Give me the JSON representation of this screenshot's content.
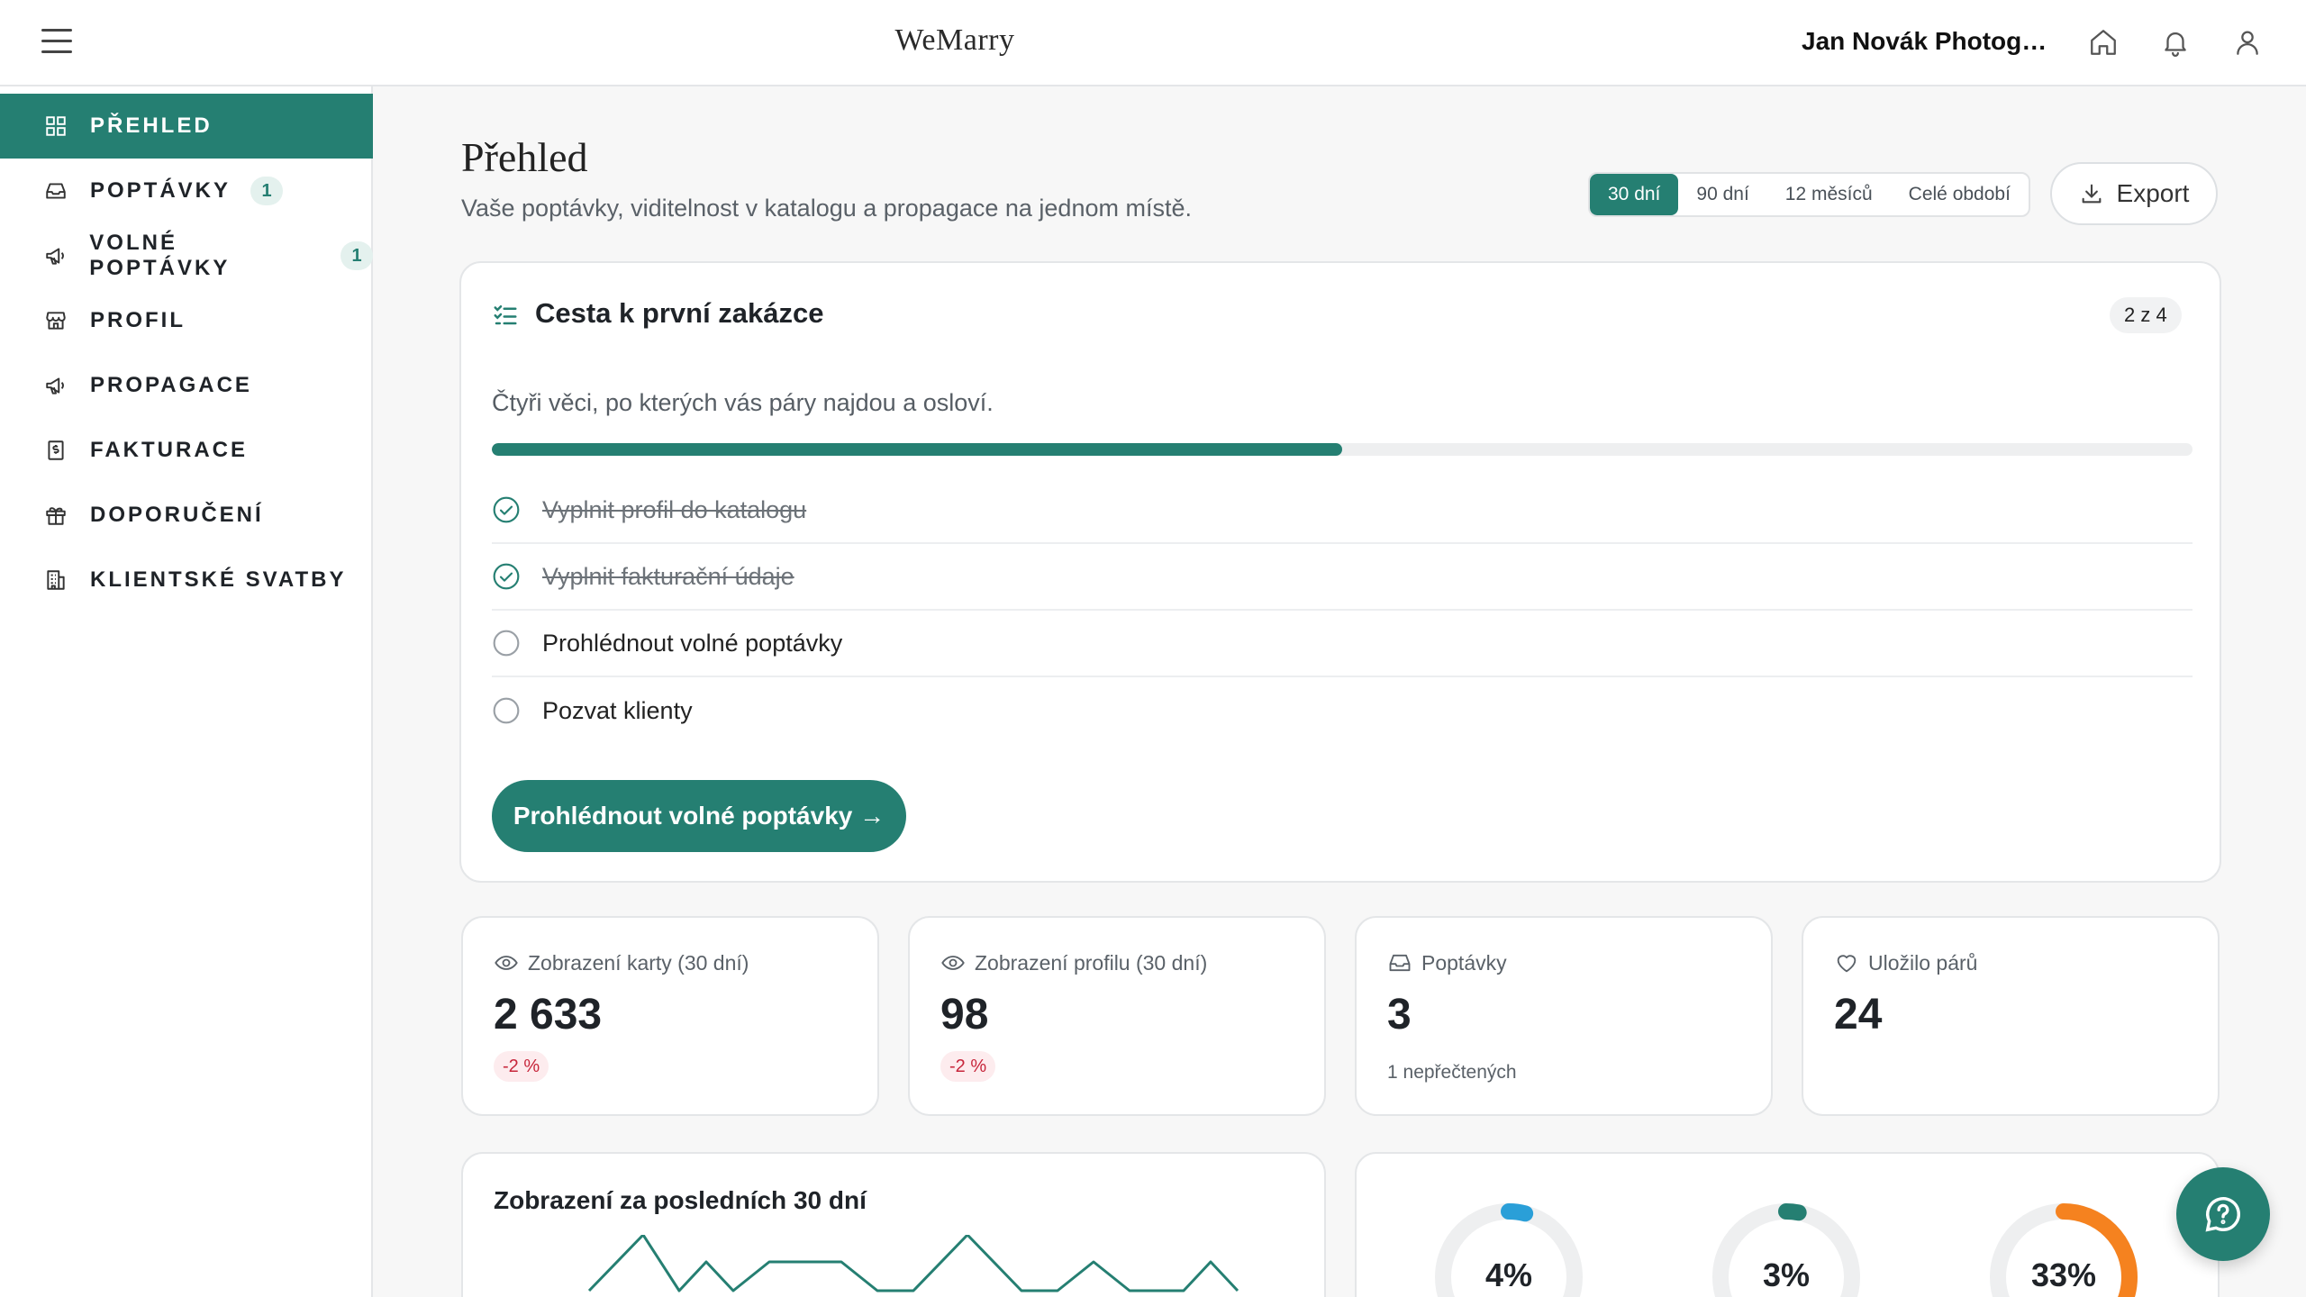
{
  "header": {
    "brand": "WeMarry",
    "account_name": "Jan Novák Photogra..."
  },
  "sidebar": {
    "items": [
      {
        "label": "PŘEHLED",
        "icon": "grid-icon",
        "active": true
      },
      {
        "label": "POPTÁVKY",
        "icon": "inbox-icon",
        "badge": "1"
      },
      {
        "label": "VOLNÉ POPTÁVKY",
        "icon": "megaphone-icon",
        "badge": "1"
      },
      {
        "label": "PROFIL",
        "icon": "store-icon"
      },
      {
        "label": "PROPAGACE",
        "icon": "megaphone-icon"
      },
      {
        "label": "FAKTURACE",
        "icon": "receipt-icon"
      },
      {
        "label": "DOPORUČENÍ",
        "icon": "gift-icon"
      },
      {
        "label": "KLIENTSKÉ SVATBY",
        "icon": "building-icon"
      }
    ]
  },
  "page": {
    "title": "Přehled",
    "subtitle": "Vaše poptávky, viditelnost v katalogu a propagace na jednom místě.",
    "periods": [
      "30 dní",
      "90 dní",
      "12 měsíců",
      "Celé období"
    ],
    "selected_period": "30 dní",
    "export_label": "Export"
  },
  "onboarding": {
    "title": "Cesta k první zakázce",
    "badge": "2 z 4",
    "description": "Čtyři věci, po kterých vás páry najdou a osloví.",
    "progress": 0.5,
    "tasks": [
      {
        "label": "Vyplnit profil do katalogu",
        "done": true
      },
      {
        "label": "Vyplnit fakturační údaje",
        "done": true
      },
      {
        "label": "Prohlédnout volné poptávky",
        "done": false
      },
      {
        "label": "Pozvat klienty",
        "done": false
      }
    ],
    "cta_label": "Prohlédnout volné poptávky →"
  },
  "stats": [
    {
      "label": "Zobrazení karty (30 dní)",
      "value": "2 633",
      "delta": "-2 %",
      "icon": "eye-icon"
    },
    {
      "label": "Zobrazení profilu (30 dní)",
      "value": "98",
      "delta": "-2 %",
      "icon": "eye-icon"
    },
    {
      "label": "Poptávky",
      "value": "3",
      "note": "1 nepřečtených",
      "icon": "inbox-icon"
    },
    {
      "label": "Uložilo párů",
      "value": "24",
      "icon": "heart-icon"
    }
  ],
  "views_chart": {
    "title": "Zobrazení za posledních 30 dní"
  },
  "rates": [
    {
      "value": "4%",
      "fraction": 0.04,
      "color": "#2a9fd8"
    },
    {
      "value": "3%",
      "fraction": 0.03,
      "color": "#257f72"
    },
    {
      "value": "33%",
      "fraction": 0.33,
      "color": "#f5821f"
    }
  ],
  "colors": {
    "accent": "#257f72",
    "negative": "#c7263b"
  }
}
